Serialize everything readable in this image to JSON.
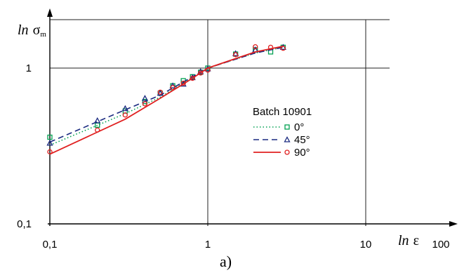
{
  "chart_data": {
    "type": "line",
    "x_scale": "log",
    "y_scale": "log",
    "xlim": [
      0.1,
      100
    ],
    "ylim": [
      0.1,
      3
    ],
    "x_ticks": [
      {
        "value": 0.1,
        "label": "0,1"
      },
      {
        "value": 1,
        "label": "1"
      },
      {
        "value": 10,
        "label": "10"
      },
      {
        "value": 100,
        "label": "100"
      }
    ],
    "y_ticks": [
      {
        "value": 0.1,
        "label": "0,1"
      },
      {
        "value": 1,
        "label": "1"
      }
    ],
    "xlabel": {
      "italic": "ln",
      "symbol": "ε"
    },
    "ylabel": {
      "italic": "ln",
      "symbol": "σ",
      "subscript": "m"
    },
    "caption": "a)",
    "grid": "major",
    "legend": {
      "title": "Batch 10901",
      "placement": "center-right",
      "entries": [
        "0°",
        "45°",
        "90°"
      ]
    },
    "series": [
      {
        "name": "0°",
        "color": "#00a050",
        "line_style": "dotted",
        "marker": "square",
        "points": [
          [
            0.1,
            0.36
          ],
          [
            0.2,
            0.43
          ],
          [
            0.3,
            0.53
          ],
          [
            0.4,
            0.61
          ],
          [
            0.5,
            0.69
          ],
          [
            0.6,
            0.77
          ],
          [
            0.7,
            0.83
          ],
          [
            0.8,
            0.88
          ],
          [
            0.9,
            0.94
          ],
          [
            1,
            1.0
          ],
          [
            1.5,
            1.23
          ],
          [
            2,
            1.31
          ],
          [
            2.5,
            1.27
          ],
          [
            3,
            1.36
          ]
        ],
        "fit": [
          [
            0.1,
            0.32
          ],
          [
            0.3,
            0.51
          ],
          [
            0.5,
            0.65
          ],
          [
            0.8,
            0.87
          ],
          [
            1,
            1.0
          ],
          [
            1.5,
            1.14
          ],
          [
            2,
            1.25
          ],
          [
            3,
            1.36
          ]
        ]
      },
      {
        "name": "45°",
        "color": "#1a2a80",
        "line_style": "dashed",
        "marker": "triangle",
        "points": [
          [
            0.1,
            0.33
          ],
          [
            0.2,
            0.46
          ],
          [
            0.3,
            0.55
          ],
          [
            0.4,
            0.64
          ],
          [
            0.5,
            0.69
          ],
          [
            0.6,
            0.77
          ],
          [
            0.7,
            0.79
          ],
          [
            0.8,
            0.87
          ],
          [
            0.9,
            0.95
          ],
          [
            1,
            0.99
          ],
          [
            1.5,
            1.24
          ],
          [
            2,
            1.31
          ],
          [
            3,
            1.36
          ]
        ],
        "fit": [
          [
            0.1,
            0.335
          ],
          [
            0.3,
            0.54
          ],
          [
            0.5,
            0.67
          ],
          [
            0.8,
            0.88
          ],
          [
            1,
            1.0
          ],
          [
            1.5,
            1.14
          ],
          [
            2,
            1.25
          ],
          [
            3,
            1.36
          ]
        ]
      },
      {
        "name": "90°",
        "color": "#e02020",
        "line_style": "solid",
        "marker": "circle",
        "points": [
          [
            0.1,
            0.29
          ],
          [
            0.2,
            0.4
          ],
          [
            0.3,
            0.5
          ],
          [
            0.4,
            0.59
          ],
          [
            0.5,
            0.7
          ],
          [
            0.6,
            0.75
          ],
          [
            0.7,
            0.8
          ],
          [
            0.8,
            0.86
          ],
          [
            0.9,
            0.93
          ],
          [
            1,
            0.97
          ],
          [
            1.5,
            1.22
          ],
          [
            2,
            1.37
          ],
          [
            2.5,
            1.36
          ],
          [
            3,
            1.34
          ]
        ],
        "fit": [
          [
            0.1,
            0.28
          ],
          [
            0.3,
            0.47
          ],
          [
            0.5,
            0.64
          ],
          [
            0.8,
            0.86
          ],
          [
            1,
            1.0
          ],
          [
            1.5,
            1.15
          ],
          [
            2,
            1.27
          ],
          [
            3,
            1.38
          ]
        ]
      }
    ]
  }
}
